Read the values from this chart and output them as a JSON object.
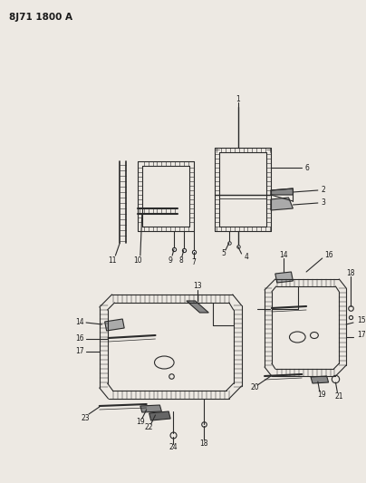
{
  "title": "8J71 1800 A",
  "bg": "#ede9e3",
  "lc": "#2a2a2a",
  "tc": "#1a1a1a",
  "figsize": [
    4.04,
    5.33
  ],
  "dpi": 100
}
